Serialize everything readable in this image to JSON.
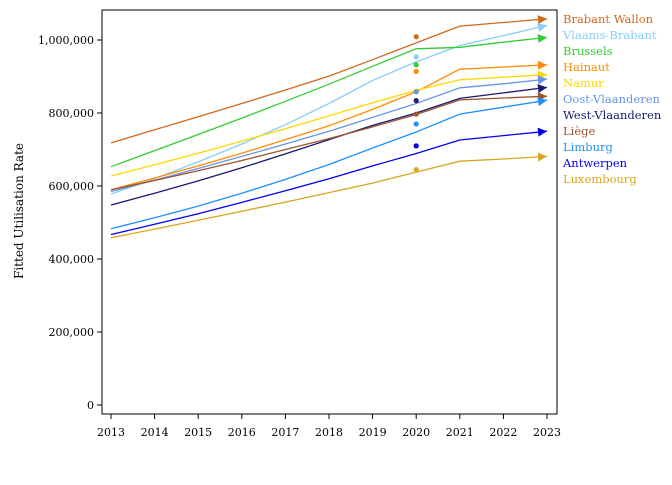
{
  "chart_data": {
    "type": "line",
    "title": "",
    "xlabel": "",
    "ylabel": "Fitted Utilisation Rate",
    "x": [
      2013,
      2014,
      2015,
      2016,
      2017,
      2018,
      2019,
      2020,
      2021,
      2022,
      2023
    ],
    "xlim": [
      2013,
      2023
    ],
    "ylim": [
      0,
      1080000
    ],
    "yticks": [
      0,
      200000,
      400000,
      600000,
      800000,
      1000000
    ],
    "ytick_labels": [
      "0",
      "200,000",
      "400,000",
      "600,000",
      "800,000",
      "1,000,000"
    ],
    "xtick_labels": [
      "2013",
      "2014",
      "2015",
      "2016",
      "2017",
      "2018",
      "2019",
      "2020",
      "2021",
      "2022",
      "2023"
    ],
    "grid": false,
    "legend": "right",
    "observed_x": 2020,
    "series": [
      {
        "name": "Brabant Wallon",
        "color": "#d2691e",
        "values": [
          718000,
          754000,
          790000,
          826000,
          863000,
          901000,
          946000,
          992000,
          1038000,
          1048000,
          1058000
        ],
        "observed": 1009000
      },
      {
        "name": "Vlaams-Brabant",
        "color": "#87cefa",
        "values": [
          578000,
          620000,
          666000,
          715000,
          768000,
          826000,
          889000,
          940000,
          985000,
          1012000,
          1040000
        ],
        "observed": 954000
      },
      {
        "name": "Brussels",
        "color": "#32cd32",
        "values": [
          653000,
          697000,
          741000,
          786000,
          832000,
          879000,
          928000,
          976000,
          980000,
          994000,
          1007000
        ],
        "observed": 932000
      },
      {
        "name": "Hainaut",
        "color": "#ff8c00",
        "values": [
          590000,
          622000,
          655000,
          690000,
          727000,
          765000,
          810000,
          858000,
          920000,
          926000,
          932000
        ],
        "observed": 914000
      },
      {
        "name": "Namur",
        "color": "#ffd700",
        "values": [
          627000,
          658000,
          690000,
          723000,
          757000,
          792000,
          828000,
          862000,
          891000,
          898000,
          905000
        ],
        "observed": 860000
      },
      {
        "name": "Oost-Vlaanderen",
        "color": "#6495ed",
        "values": [
          585000,
          616000,
          648000,
          681000,
          715000,
          750000,
          788000,
          826000,
          869000,
          880000,
          893000
        ],
        "observed": 858000
      },
      {
        "name": "West-Vlaanderen",
        "color": "#191970",
        "values": [
          548000,
          580000,
          614000,
          650000,
          688000,
          727000,
          766000,
          800000,
          840000,
          855000,
          870000
        ],
        "observed": 834000
      },
      {
        "name": "Liège",
        "color": "#a0522d",
        "values": [
          590000,
          615000,
          642000,
          670000,
          700000,
          730000,
          762000,
          796000,
          836000,
          841000,
          846000
        ],
        "observed": 797000
      },
      {
        "name": "Limburg",
        "color": "#1e90ff",
        "values": [
          483000,
          513000,
          545000,
          580000,
          618000,
          659000,
          704000,
          748000,
          797000,
          816000,
          835000
        ],
        "observed": 770000
      },
      {
        "name": "Antwerpen",
        "color": "#0000ee",
        "values": [
          467000,
          495000,
          524000,
          555000,
          587000,
          620000,
          655000,
          689000,
          726000,
          738000,
          750000
        ],
        "observed": 710000
      },
      {
        "name": "Luxembourg",
        "color": "#daa520",
        "values": [
          458000,
          482000,
          506000,
          531000,
          556000,
          582000,
          608000,
          638000,
          668000,
          674000,
          681000
        ],
        "observed": 645000
      }
    ]
  }
}
